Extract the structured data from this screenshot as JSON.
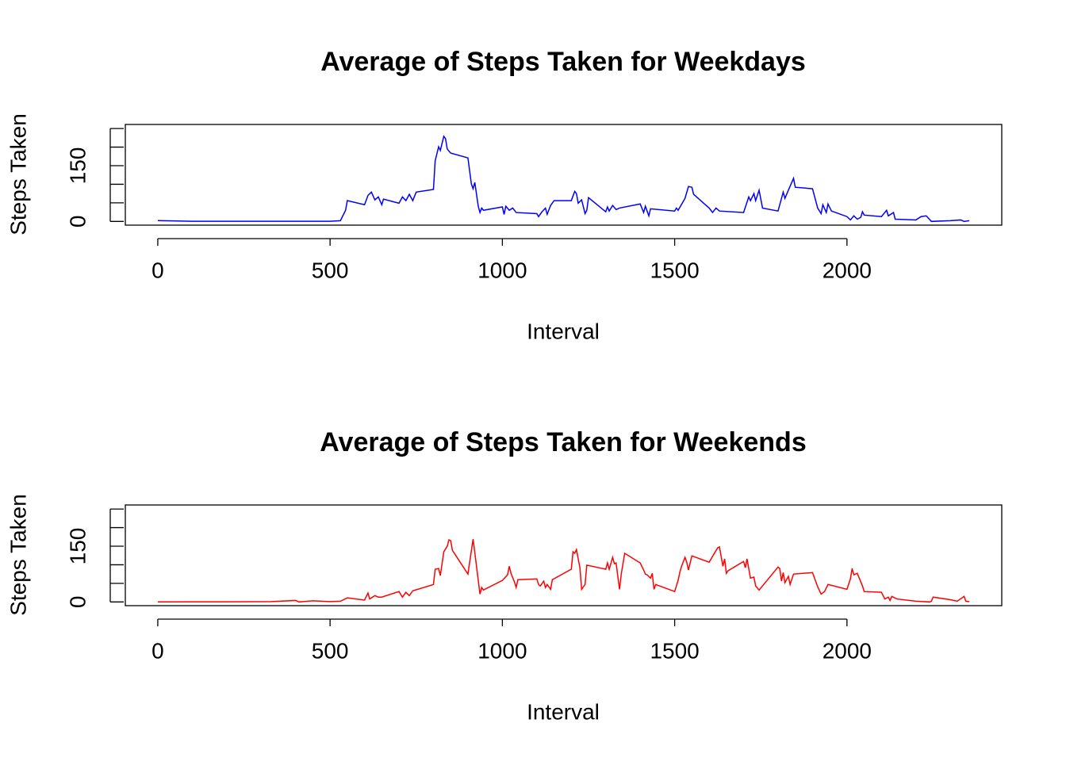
{
  "chart_data": [
    {
      "type": "line",
      "title": "Average of Steps Taken for Weekdays",
      "x_label": "Interval",
      "y_label": "Steps Taken",
      "color": "#0000ff",
      "xlim": [
        -94.2,
        2449.2
      ],
      "xticks": [
        0,
        500,
        1000,
        1500,
        2000
      ],
      "ylim": [
        -10,
        261
      ],
      "yticks": [
        0,
        150
      ],
      "yticks_unlabeled": [
        50,
        100,
        200,
        250
      ],
      "x": [
        0,
        100,
        200,
        300,
        400,
        500,
        530,
        545,
        550,
        600,
        610,
        620,
        630,
        640,
        650,
        655,
        700,
        710,
        720,
        730,
        740,
        750,
        800,
        805,
        815,
        820,
        830,
        835,
        840,
        850,
        900,
        910,
        915,
        920,
        930,
        935,
        940,
        945,
        1000,
        1005,
        1010,
        1020,
        1030,
        1040,
        1100,
        1105,
        1115,
        1125,
        1130,
        1140,
        1150,
        1200,
        1210,
        1215,
        1220,
        1230,
        1240,
        1245,
        1250,
        1300,
        1305,
        1310,
        1320,
        1330,
        1340,
        1400,
        1410,
        1415,
        1425,
        1430,
        1500,
        1505,
        1510,
        1530,
        1540,
        1550,
        1555,
        1600,
        1610,
        1620,
        1630,
        1700,
        1715,
        1720,
        1730,
        1735,
        1745,
        1755,
        1800,
        1815,
        1820,
        1830,
        1845,
        1850,
        1900,
        1915,
        1925,
        1930,
        1940,
        1945,
        1955,
        2000,
        2010,
        2020,
        2030,
        2040,
        2045,
        2050,
        2100,
        2115,
        2120,
        2135,
        2140,
        2200,
        2215,
        2230,
        2245,
        2300,
        2330,
        2340,
        2355
      ],
      "values": [
        2.3,
        0.5,
        0.5,
        0.3,
        0.5,
        0.5,
        2,
        30,
        56,
        45,
        70,
        79,
        58,
        66,
        45,
        60,
        49,
        66,
        56,
        73,
        56,
        79,
        86,
        163,
        201,
        191,
        229,
        223,
        195,
        184,
        171,
        101,
        88,
        105,
        41,
        24,
        36,
        30,
        39,
        19,
        41,
        30,
        36,
        24,
        21,
        13,
        26,
        36,
        19,
        43,
        56,
        56,
        81,
        75,
        49,
        58,
        21,
        30,
        64,
        26,
        39,
        28,
        43,
        32,
        36,
        47,
        24,
        41,
        15,
        34,
        28,
        36,
        30,
        62,
        94,
        92,
        73,
        36,
        24,
        36,
        28,
        24,
        66,
        56,
        75,
        56,
        84,
        36,
        28,
        79,
        62,
        84,
        116,
        92,
        88,
        36,
        21,
        45,
        24,
        47,
        28,
        13,
        4,
        15,
        6,
        11,
        26,
        17,
        13,
        30,
        15,
        24,
        6,
        4,
        13,
        15,
        0,
        2,
        4,
        0,
        2
      ]
    },
    {
      "type": "line",
      "title": "Average of Steps Taken for Weekends",
      "x_label": "Interval",
      "y_label": "Steps Taken",
      "color": "#ff0000",
      "xlim": [
        -94.2,
        2449.2
      ],
      "xticks": [
        0,
        500,
        1000,
        1500,
        2000
      ],
      "ylim": [
        -10,
        261
      ],
      "yticks": [
        0,
        150
      ],
      "yticks_unlabeled": [
        50,
        100,
        200,
        250
      ],
      "x": [
        0,
        100,
        200,
        330,
        400,
        410,
        450,
        500,
        530,
        550,
        600,
        610,
        615,
        630,
        640,
        650,
        700,
        710,
        720,
        730,
        740,
        800,
        805,
        815,
        820,
        830,
        840,
        845,
        850,
        855,
        900,
        915,
        920,
        935,
        940,
        945,
        1000,
        1015,
        1020,
        1025,
        1035,
        1040,
        1045,
        1100,
        1105,
        1110,
        1120,
        1125,
        1130,
        1140,
        1145,
        1200,
        1205,
        1210,
        1215,
        1225,
        1230,
        1240,
        1245,
        1300,
        1305,
        1310,
        1320,
        1325,
        1330,
        1340,
        1345,
        1355,
        1400,
        1410,
        1415,
        1420,
        1430,
        1435,
        1440,
        1445,
        1500,
        1510,
        1515,
        1520,
        1530,
        1535,
        1540,
        1550,
        1600,
        1625,
        1630,
        1640,
        1645,
        1650,
        1655,
        1700,
        1705,
        1710,
        1720,
        1730,
        1735,
        1745,
        1800,
        1805,
        1810,
        1815,
        1820,
        1830,
        1835,
        1845,
        1900,
        1915,
        1925,
        1935,
        1945,
        2000,
        2010,
        2015,
        2020,
        2030,
        2045,
        2050,
        2100,
        2110,
        2120,
        2125,
        2130,
        2145,
        2200,
        2240,
        2245,
        2250,
        2300,
        2320,
        2340,
        2345,
        2355
      ],
      "values": [
        0,
        0.5,
        0.5,
        1,
        4,
        0,
        3,
        1,
        2,
        11,
        5,
        24,
        8,
        17,
        13,
        13,
        28,
        13,
        26,
        17,
        30,
        47,
        88,
        90,
        71,
        135,
        150,
        167,
        165,
        139,
        75,
        169,
        133,
        21,
        39,
        32,
        58,
        73,
        96,
        77,
        54,
        39,
        60,
        62,
        47,
        43,
        56,
        39,
        47,
        34,
        60,
        88,
        135,
        131,
        141,
        92,
        34,
        47,
        99,
        88,
        105,
        88,
        120,
        103,
        105,
        34,
        75,
        131,
        105,
        86,
        75,
        73,
        64,
        77,
        34,
        47,
        28,
        58,
        80,
        96,
        120,
        107,
        86,
        124,
        107,
        146,
        148,
        96,
        116,
        77,
        84,
        109,
        92,
        116,
        64,
        67,
        43,
        32,
        94,
        90,
        56,
        79,
        52,
        69,
        47,
        75,
        79,
        41,
        21,
        28,
        47,
        34,
        62,
        90,
        73,
        77,
        43,
        28,
        26,
        8,
        13,
        4,
        15,
        8,
        2,
        0,
        2,
        13,
        6,
        2,
        15,
        2,
        1
      ]
    }
  ]
}
